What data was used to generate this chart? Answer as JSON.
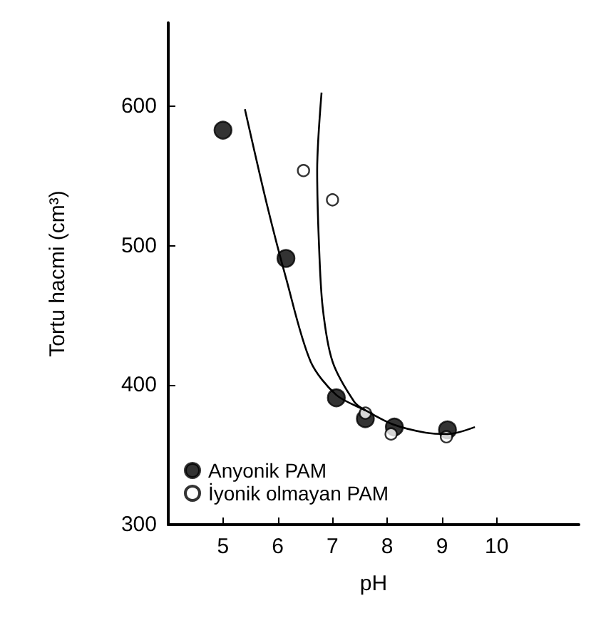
{
  "chart_data": {
    "type": "scatter",
    "xlabel": "pH",
    "ylabel": "Tortu hacmi (cm³)",
    "xlim": [
      4,
      11.5
    ],
    "ylim": [
      300,
      660
    ],
    "xticks": [
      5,
      6,
      7,
      8,
      9,
      10
    ],
    "yticks": [
      300,
      400,
      500,
      600
    ],
    "grid": false,
    "legend": "bottom left",
    "series": [
      {
        "name": "Anyonik PAM",
        "marker": "circle",
        "color": "#000000",
        "x": [
          5.0,
          6.15,
          7.07,
          7.6,
          8.13,
          9.1
        ],
        "values": [
          583,
          491,
          391,
          376,
          370,
          368
        ]
      },
      {
        "name": "İyonik olmayan PAM",
        "marker": "circle",
        "color": "#ffffff",
        "x": [
          6.47,
          7.0,
          7.6,
          8.07,
          9.08
        ],
        "values": [
          554,
          533,
          380,
          365,
          363
        ]
      },
      {
        "type": "line",
        "color": "#000000",
        "x": [
          5.4,
          5.8,
          6.15,
          6.6,
          7.07,
          7.6,
          8.1,
          8.7,
          9.1,
          9.6
        ],
        "values": [
          598,
          530,
          477,
          417,
          393,
          382,
          372,
          366,
          365,
          370
        ]
      },
      {
        "type": "line",
        "color": "#000000",
        "x": [
          6.8,
          6.72,
          6.75,
          6.82,
          7.0,
          7.4,
          7.6
        ],
        "values": [
          610,
          554,
          504,
          456,
          417,
          388,
          382
        ]
      }
    ]
  }
}
